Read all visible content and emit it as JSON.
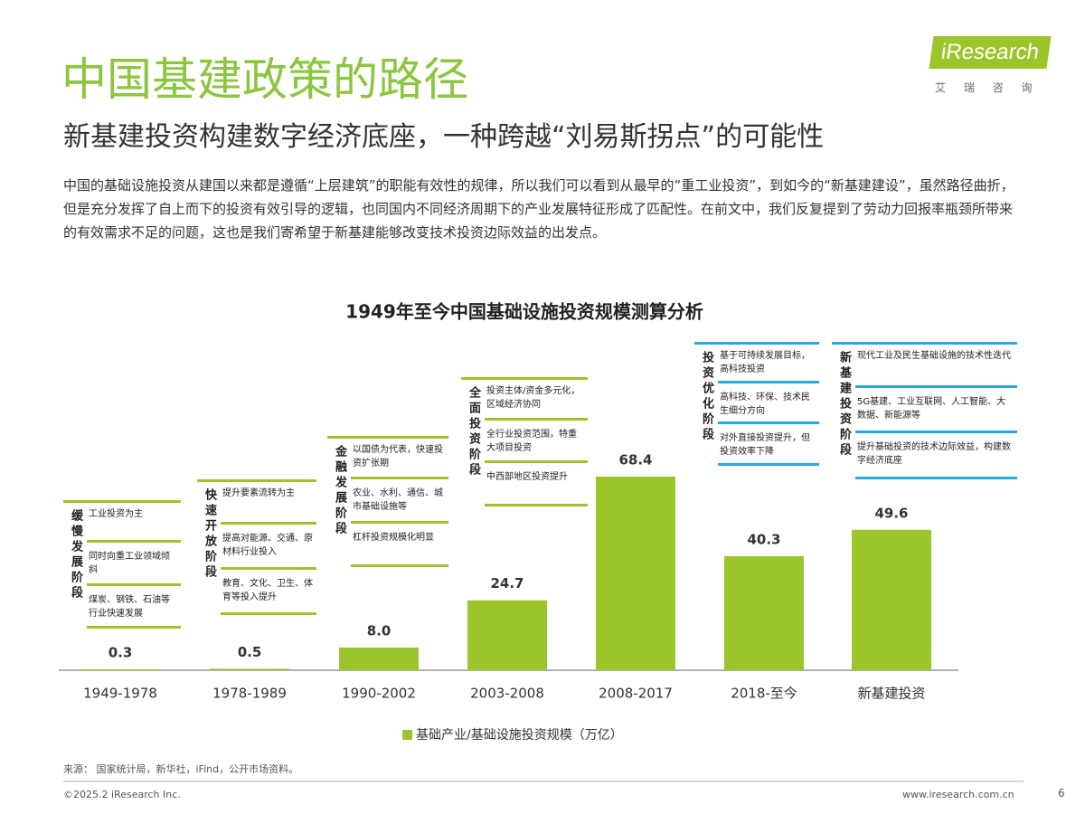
{
  "header": {
    "title": "中国基建政策的路径",
    "subtitle": "新基建投资构建数字经济底座，一种跨越“刘易斯拐点”的可能性",
    "logo": "iResearch",
    "logo_sub": "艾 瑞 咨 询"
  },
  "body": "中国的基础设施投资从建国以来都是遵循“上层建筑”的职能有效性的规律，所以我们可以看到从最早的“重工业投资”，到如今的“新基建建设”，虽然路径曲折，但是充分发挥了自上而下的投资有效引导的逻辑，也同国内不同经济周期下的产业发展特征形成了匹配性。在前文中，我们反复提到了劳动力回报率瓶颈所带来的有效需求不足的问题，这也是我们寄希望于新基建能够改变技术投资边际效益的出发点。",
  "chart_data": {
    "type": "bar",
    "title": "1949年至今中国基础设施投资规模测算分析",
    "categories": [
      "1949-1978",
      "1978-1989",
      "1990-2002",
      "2003-2008",
      "2008-2017",
      "2018-至今",
      "新基建投资"
    ],
    "series": [
      {
        "name": "基础产业/基础设施投资规模（万亿）",
        "color": "#9bc52a",
        "values": [
          0.3,
          0.5,
          8.0,
          24.7,
          68.4,
          40.3,
          49.6
        ],
        "value_labels": [
          "0.3",
          "0.5",
          "8.0",
          "24.7",
          "68.4",
          "40.3",
          "49.6"
        ]
      }
    ],
    "stages": [
      {
        "label": "缓慢发展阶段",
        "color": "#9bc52a",
        "items": [
          "工业投资为主",
          "同时向重工业领域倾斜",
          "煤炭、钢铁、石油等行业快速发展"
        ]
      },
      {
        "label": "快速开放阶段",
        "color": "#9bc52a",
        "items": [
          "提升要素流转为主",
          "提高对能源、交通、原材料行业投入",
          "教育、文化、卫生、体育等投入提升"
        ]
      },
      {
        "label": "金融发展阶段",
        "color": "#9bc52a",
        "items": [
          "以国债为代表，快速投资扩张期",
          "农业、水利、通信、城市基础设施等",
          "杠杆投资规模化明显"
        ]
      },
      {
        "label": "全面投资阶段",
        "color": "#9bc52a",
        "items": [
          "投资主体/资金多元化，区域经济协同",
          "全行业投资范围，特重大项目投资",
          "中西部地区投资提升"
        ]
      },
      {
        "label": "投资优化阶段",
        "color": "#29a8e0",
        "items": [
          "基于可持续发展目标，高科技投资",
          "高科技、环保、技术民生细分方向",
          "对外直接投资提升，但投资效率下降"
        ]
      },
      {
        "label": "新基建投资阶段",
        "color": "#29a8e0",
        "items": [
          "现代工业及民生基础设施的技术性迭代",
          "5G基建、工业互联网、人工智能、大数据、新能源等",
          "提升基础投资的技术边际效益，构建数字经济底座"
        ]
      }
    ]
  },
  "footer": {
    "source": "来源：  国家统计局，新华社，iFind，公开市场资料。",
    "copyright": "©2025.2 iResearch Inc.",
    "url": "www.iresearch.com.cn",
    "page": "6"
  }
}
